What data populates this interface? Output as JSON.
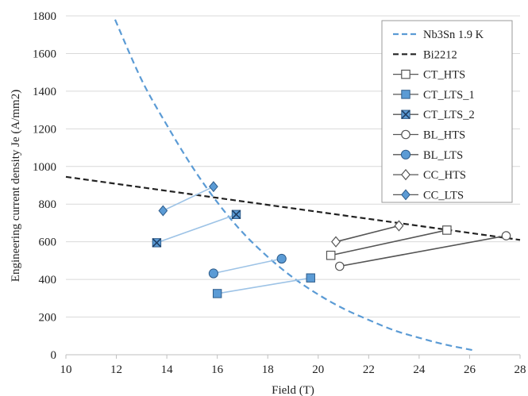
{
  "chart_data": {
    "type": "line",
    "title": "",
    "xlabel": "Field (T)",
    "ylabel": "Engineering current density Je (A/mm2)",
    "xlim": [
      10,
      28
    ],
    "ylim": [
      0,
      1800
    ],
    "x_ticks": [
      10,
      12,
      14,
      16,
      18,
      20,
      22,
      24,
      26,
      28
    ],
    "y_ticks": [
      0,
      200,
      400,
      600,
      800,
      1000,
      1200,
      1400,
      1600,
      1800
    ],
    "grid": "horizontal",
    "legend_position": "top-right",
    "series": [
      {
        "name": "Nb3Sn 1.9 K",
        "style": "dashed",
        "color": "#5b9bd5",
        "marker": "none",
        "points": [
          [
            11.95,
            1780
          ],
          [
            13,
            1460
          ],
          [
            14,
            1220
          ],
          [
            15,
            1000
          ],
          [
            16,
            810
          ],
          [
            17,
            650
          ],
          [
            18,
            520
          ],
          [
            19,
            410
          ],
          [
            20,
            320
          ],
          [
            21,
            245
          ],
          [
            22,
            185
          ],
          [
            23,
            130
          ],
          [
            24,
            90
          ],
          [
            25,
            55
          ],
          [
            26.1,
            25
          ]
        ]
      },
      {
        "name": "Bi2212",
        "style": "dashed",
        "color": "#222222",
        "marker": "none",
        "points": [
          [
            10,
            945
          ],
          [
            28,
            610
          ]
        ]
      },
      {
        "name": "CT_HTS",
        "style": "solid",
        "color": "#555555",
        "marker": "square-open",
        "points": [
          [
            20.5,
            528
          ],
          [
            25.1,
            662
          ]
        ]
      },
      {
        "name": "CT_LTS_1",
        "style": "solid",
        "color": "#9dc3e6",
        "marker": "square-filled",
        "points": [
          [
            16,
            325
          ],
          [
            19.7,
            408
          ]
        ]
      },
      {
        "name": "CT_LTS_2",
        "style": "solid",
        "color": "#9dc3e6",
        "marker": "x-square",
        "points": [
          [
            13.6,
            595
          ],
          [
            16.75,
            745
          ]
        ]
      },
      {
        "name": "BL_HTS",
        "style": "solid",
        "color": "#555555",
        "marker": "circle-open",
        "points": [
          [
            20.85,
            470
          ],
          [
            27.45,
            632
          ]
        ]
      },
      {
        "name": "BL_LTS",
        "style": "solid",
        "color": "#9dc3e6",
        "marker": "circle-filled",
        "points": [
          [
            15.85,
            432
          ],
          [
            18.55,
            510
          ]
        ]
      },
      {
        "name": "CC_HTS",
        "style": "solid",
        "color": "#555555",
        "marker": "diamond-open",
        "points": [
          [
            20.7,
            600
          ],
          [
            23.2,
            685
          ]
        ]
      },
      {
        "name": "CC_LTS",
        "style": "solid",
        "color": "#9dc3e6",
        "marker": "diamond-filled",
        "points": [
          [
            13.85,
            765
          ],
          [
            15.85,
            893
          ]
        ]
      }
    ]
  }
}
